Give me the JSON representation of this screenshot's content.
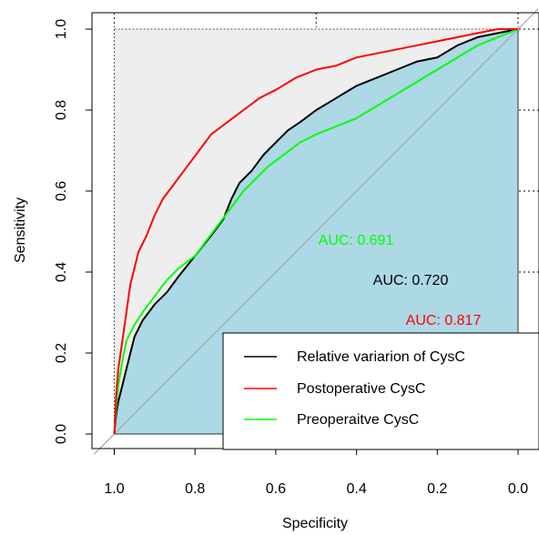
{
  "chart_data": {
    "type": "line",
    "xlabel": "Specificity",
    "ylabel": "Sensitivity",
    "x_reversed": true,
    "xlim": [
      1.0,
      0.0
    ],
    "ylim": [
      0.0,
      1.0
    ],
    "xticks": [
      "1.0",
      "0.8",
      "0.6",
      "0.4",
      "0.2",
      "0.0"
    ],
    "yticks": [
      "0.0",
      "0.2",
      "0.4",
      "0.6",
      "0.8",
      "1.0"
    ],
    "grid": "dotted",
    "legend_position": "bottom-right",
    "colors": {
      "sky_fill": "#add8e6",
      "upper_fill": "#eeeeee",
      "diagonal": "#a6a6a6"
    },
    "series": [
      {
        "name": "Relative variarion of CysC",
        "color": "#000000",
        "auc_label": "AUC: 0.720",
        "auc_value": 0.72,
        "points": [
          [
            1.0,
            0.0
          ],
          [
            0.995,
            0.05
          ],
          [
            0.99,
            0.08
          ],
          [
            0.98,
            0.12
          ],
          [
            0.97,
            0.16
          ],
          [
            0.96,
            0.2
          ],
          [
            0.95,
            0.24
          ],
          [
            0.93,
            0.28
          ],
          [
            0.9,
            0.32
          ],
          [
            0.87,
            0.35
          ],
          [
            0.84,
            0.39
          ],
          [
            0.8,
            0.44
          ],
          [
            0.76,
            0.49
          ],
          [
            0.73,
            0.53
          ],
          [
            0.71,
            0.58
          ],
          [
            0.69,
            0.62
          ],
          [
            0.66,
            0.65
          ],
          [
            0.63,
            0.69
          ],
          [
            0.6,
            0.72
          ],
          [
            0.57,
            0.75
          ],
          [
            0.54,
            0.77
          ],
          [
            0.5,
            0.8
          ],
          [
            0.45,
            0.83
          ],
          [
            0.4,
            0.86
          ],
          [
            0.35,
            0.88
          ],
          [
            0.3,
            0.9
          ],
          [
            0.25,
            0.92
          ],
          [
            0.2,
            0.93
          ],
          [
            0.15,
            0.96
          ],
          [
            0.1,
            0.98
          ],
          [
            0.05,
            0.99
          ],
          [
            0.0,
            1.0
          ]
        ]
      },
      {
        "name": "Postoperative CysC",
        "color": "#ff0000",
        "auc_label": "AUC: 0.817",
        "auc_value": 0.817,
        "points": [
          [
            1.0,
            0.0
          ],
          [
            0.995,
            0.1
          ],
          [
            0.99,
            0.16
          ],
          [
            0.98,
            0.23
          ],
          [
            0.97,
            0.3
          ],
          [
            0.96,
            0.37
          ],
          [
            0.95,
            0.41
          ],
          [
            0.94,
            0.45
          ],
          [
            0.92,
            0.49
          ],
          [
            0.9,
            0.54
          ],
          [
            0.88,
            0.58
          ],
          [
            0.85,
            0.62
          ],
          [
            0.82,
            0.66
          ],
          [
            0.79,
            0.7
          ],
          [
            0.76,
            0.74
          ],
          [
            0.72,
            0.77
          ],
          [
            0.68,
            0.8
          ],
          [
            0.64,
            0.83
          ],
          [
            0.6,
            0.85
          ],
          [
            0.55,
            0.88
          ],
          [
            0.5,
            0.9
          ],
          [
            0.45,
            0.91
          ],
          [
            0.4,
            0.93
          ],
          [
            0.35,
            0.94
          ],
          [
            0.3,
            0.95
          ],
          [
            0.25,
            0.96
          ],
          [
            0.2,
            0.97
          ],
          [
            0.15,
            0.98
          ],
          [
            0.1,
            0.99
          ],
          [
            0.05,
            1.0
          ],
          [
            0.0,
            1.0
          ]
        ]
      },
      {
        "name": "Preoperaitve CysC",
        "color": "#00ff00",
        "auc_label": "AUC: 0.691",
        "auc_value": 0.691,
        "points": [
          [
            1.0,
            0.0
          ],
          [
            0.995,
            0.07
          ],
          [
            0.99,
            0.12
          ],
          [
            0.98,
            0.18
          ],
          [
            0.97,
            0.23
          ],
          [
            0.95,
            0.27
          ],
          [
            0.93,
            0.3
          ],
          [
            0.9,
            0.34
          ],
          [
            0.87,
            0.38
          ],
          [
            0.84,
            0.41
          ],
          [
            0.8,
            0.44
          ],
          [
            0.77,
            0.48
          ],
          [
            0.74,
            0.52
          ],
          [
            0.71,
            0.56
          ],
          [
            0.68,
            0.6
          ],
          [
            0.65,
            0.63
          ],
          [
            0.62,
            0.66
          ],
          [
            0.58,
            0.69
          ],
          [
            0.54,
            0.72
          ],
          [
            0.5,
            0.74
          ],
          [
            0.45,
            0.76
          ],
          [
            0.4,
            0.78
          ],
          [
            0.35,
            0.81
          ],
          [
            0.3,
            0.84
          ],
          [
            0.25,
            0.87
          ],
          [
            0.2,
            0.9
          ],
          [
            0.15,
            0.93
          ],
          [
            0.1,
            0.96
          ],
          [
            0.05,
            0.98
          ],
          [
            0.0,
            1.0
          ]
        ]
      }
    ]
  }
}
